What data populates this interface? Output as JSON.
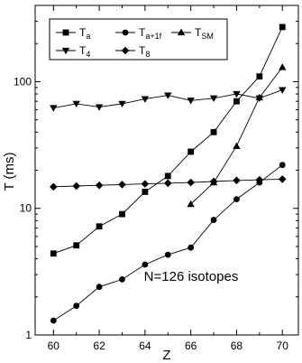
{
  "chart_data": {
    "type": "line",
    "xlabel": "Z",
    "ylabel": "T (ms)",
    "xlim": [
      59.2,
      70.7
    ],
    "ylim": [
      1,
      400
    ],
    "y_scale": "log",
    "grid": false,
    "legend_position": "top-left",
    "x_ticks": [
      60,
      62,
      64,
      66,
      68,
      70
    ],
    "x_tick_labels": [
      "60",
      "62",
      "64",
      "66",
      "68",
      "70"
    ],
    "y_ticks": [
      1,
      10,
      100
    ],
    "y_tick_labels": [
      "1",
      "10",
      "100"
    ],
    "annotation": "N=126  isotopes",
    "series": [
      {
        "key": "Ta",
        "name": "T",
        "sub": "a",
        "marker": "square",
        "x": [
          60,
          61,
          62,
          63,
          64,
          65,
          66,
          67,
          68,
          69,
          70
        ],
        "y": [
          4.4,
          5.1,
          7.2,
          9.0,
          13.5,
          18.0,
          28.0,
          40.0,
          70.0,
          110.0,
          270.0
        ]
      },
      {
        "key": "Ta11f",
        "name": "T",
        "sub": "a+1f",
        "marker": "circle",
        "x": [
          60,
          61,
          62,
          63,
          64,
          65,
          66,
          67,
          68,
          69,
          70
        ],
        "y": [
          1.3,
          1.7,
          2.4,
          2.75,
          3.6,
          4.3,
          4.9,
          8.1,
          11.8,
          16.0,
          22.0
        ]
      },
      {
        "key": "TSM",
        "name": "T",
        "sub": "SM",
        "marker": "triangle-up",
        "x": [
          66,
          67,
          68,
          69,
          70
        ],
        "y": [
          10.8,
          16.0,
          31.0,
          75.0,
          130.0
        ]
      },
      {
        "key": "T4",
        "name": "T",
        "sub": "4",
        "marker": "triangle-down",
        "x": [
          60,
          61,
          62,
          63,
          64,
          65,
          66,
          67,
          68,
          69,
          70
        ],
        "y": [
          62.0,
          67.0,
          63.0,
          67.0,
          73.0,
          78.0,
          71.0,
          74.0,
          80.0,
          74.0,
          86.0
        ]
      },
      {
        "key": "T8",
        "name": "T",
        "sub": "8",
        "marker": "diamond",
        "x": [
          60,
          61,
          62,
          63,
          64,
          65,
          66,
          67,
          68,
          69,
          70
        ],
        "y": [
          14.8,
          15.0,
          15.2,
          15.4,
          15.6,
          15.8,
          16.0,
          16.3,
          16.6,
          16.8,
          17.0
        ]
      }
    ]
  }
}
